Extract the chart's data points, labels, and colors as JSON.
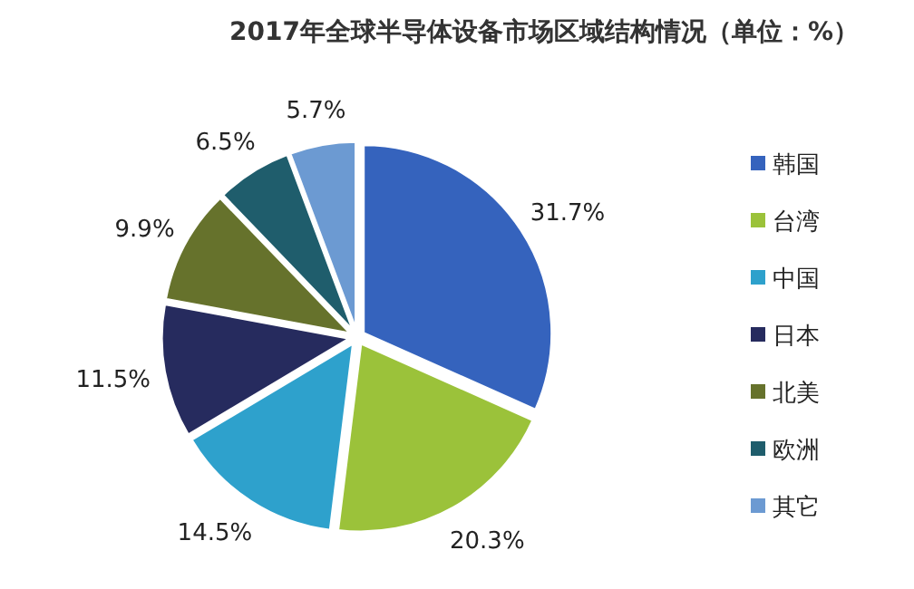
{
  "chart_data": {
    "type": "pie",
    "title": "2017年全球半导体设备市场区域结构情况（单位：%）",
    "categories": [
      "韩国",
      "台湾",
      "中国",
      "日本",
      "北美",
      "欧洲",
      "其它"
    ],
    "values": [
      31.7,
      20.3,
      14.5,
      11.5,
      9.9,
      6.5,
      5.7
    ],
    "value_labels": [
      "31.7%",
      "20.3%",
      "14.5%",
      "11.5%",
      "9.9%",
      "6.5%",
      "5.7%"
    ],
    "colors": [
      "#3563bd",
      "#9bc23a",
      "#2ea1cc",
      "#262b5e",
      "#66722c",
      "#1f5d6c",
      "#6c9ad2"
    ],
    "legend": "right"
  }
}
